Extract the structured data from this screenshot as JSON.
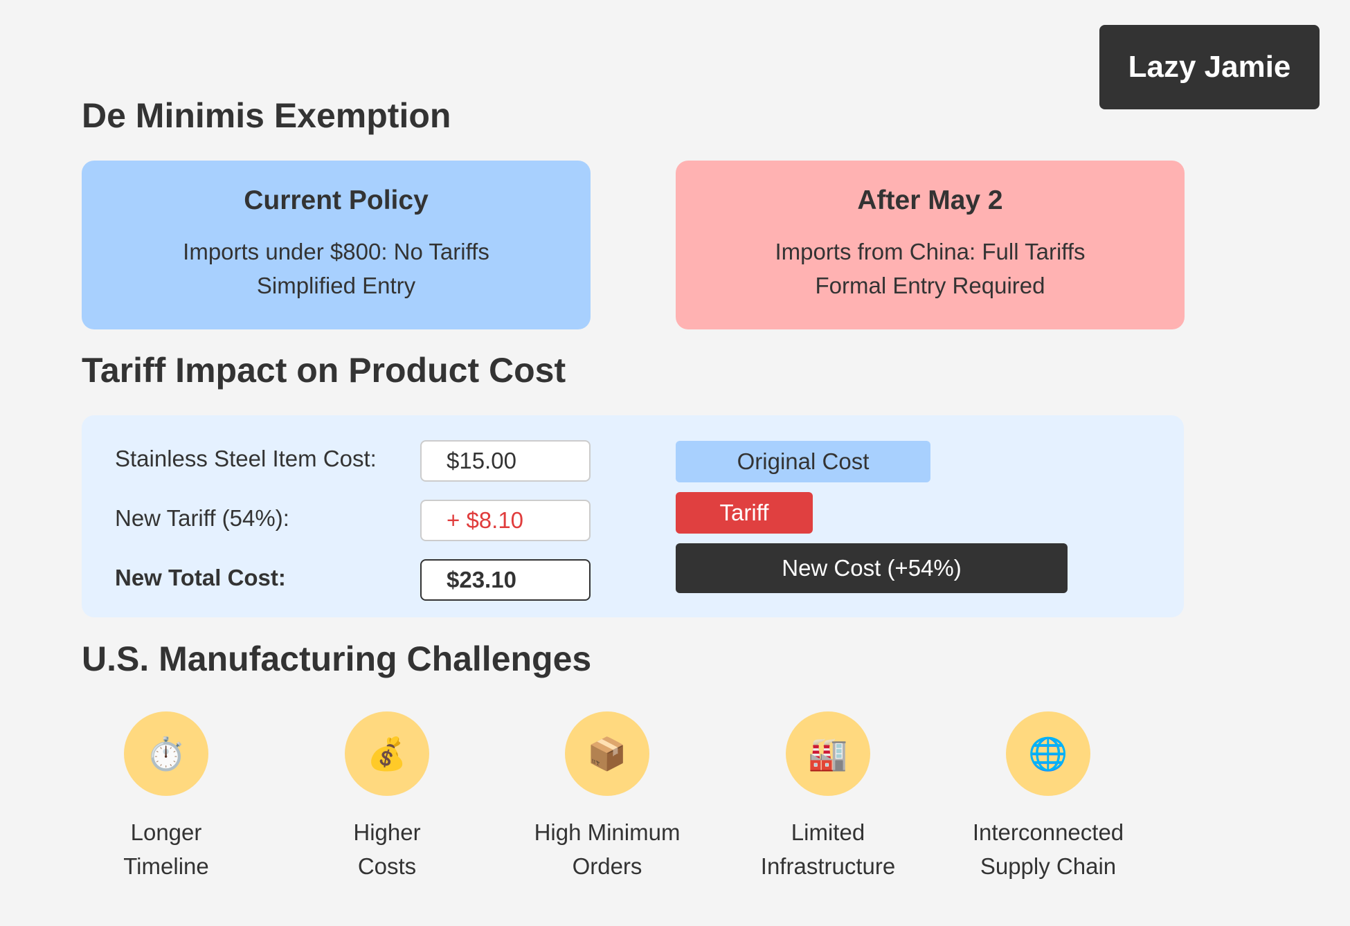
{
  "brand": {
    "name": "Lazy Jamie"
  },
  "de_minimis": {
    "title": "De Minimis Exemption",
    "current": {
      "heading": "Current Policy",
      "line1": "Imports under $800: No Tariffs",
      "line2": "Simplified Entry"
    },
    "after": {
      "heading": "After May 2",
      "line1": "Imports from China: Full Tariffs",
      "line2": "Formal Entry Required"
    }
  },
  "tariff_impact": {
    "title": "Tariff Impact on Product Cost",
    "rows": [
      {
        "label": "Stainless Steel Item Cost:",
        "value": "$15.00"
      },
      {
        "label": "New Tariff (54%):",
        "value": "+ $8.10"
      },
      {
        "label": "New Total Cost:",
        "value": "$23.10"
      }
    ],
    "bars": {
      "original": "Original Cost",
      "tariff": "Tariff",
      "new": "New Cost (+54%)"
    }
  },
  "challenges": {
    "title": "U.S. Manufacturing Challenges",
    "items": [
      {
        "icon": "stopwatch-icon",
        "glyph": "⏱️",
        "line1": "Longer",
        "line2": "Timeline"
      },
      {
        "icon": "money-bag-icon",
        "glyph": "💰",
        "line1": "Higher",
        "line2": "Costs"
      },
      {
        "icon": "package-icon",
        "glyph": "📦",
        "line1": "High Minimum",
        "line2": "Orders"
      },
      {
        "icon": "factory-icon",
        "glyph": "🏭",
        "line1": "Limited",
        "line2": "Infrastructure"
      },
      {
        "icon": "globe-icon",
        "glyph": "🌐",
        "line1": "Interconnected",
        "line2": "Supply Chain"
      }
    ]
  },
  "colors": {
    "current_card": "#a8d0fe",
    "after_card": "#ffb2b2",
    "tariff_red": "#e04040",
    "dark": "#333333",
    "icon_circle": "#ffd97f"
  }
}
